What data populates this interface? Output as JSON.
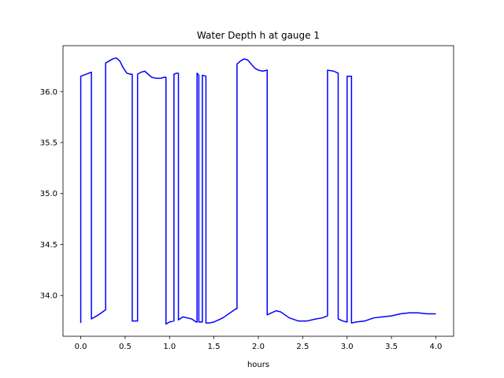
{
  "chart_data": {
    "type": "line",
    "title": "Water Depth h at gauge 1",
    "xlabel": "hours",
    "ylabel": "",
    "xlim": [
      -0.2,
      4.2
    ],
    "ylim": [
      33.6,
      36.45
    ],
    "grid": false,
    "xticks": [
      0.0,
      0.5,
      1.0,
      1.5,
      2.0,
      2.5,
      3.0,
      3.5,
      4.0
    ],
    "xtick_labels": [
      "0.0",
      "0.5",
      "1.0",
      "1.5",
      "2.0",
      "2.5",
      "3.0",
      "3.5",
      "4.0"
    ],
    "yticks": [
      34.0,
      34.5,
      35.0,
      35.5,
      36.0
    ],
    "ytick_labels": [
      "34.0",
      "34.5",
      "35.0",
      "35.5",
      "36.0"
    ],
    "colors": {
      "line": "#0000ff",
      "axes": "#000000",
      "background": "#ffffff"
    },
    "series": [
      {
        "x": [
          0.0,
          0.0,
          0.12,
          0.12,
          0.2,
          0.28,
          0.28,
          0.32,
          0.36,
          0.4,
          0.44,
          0.48,
          0.52,
          0.56,
          0.58,
          0.58,
          0.64,
          0.64,
          0.68,
          0.72,
          0.76,
          0.8,
          0.85,
          0.9,
          0.94,
          0.96,
          0.96,
          1.0,
          1.05,
          1.05,
          1.08,
          1.1,
          1.1,
          1.15,
          1.2,
          1.25,
          1.3,
          1.31,
          1.31,
          1.33,
          1.33,
          1.37,
          1.37,
          1.41,
          1.41,
          1.45,
          1.5,
          1.55,
          1.6,
          1.65,
          1.7,
          1.75,
          1.76,
          1.76,
          1.8,
          1.84,
          1.88,
          1.92,
          1.96,
          2.0,
          2.05,
          2.1,
          2.1,
          2.15,
          2.2,
          2.25,
          2.3,
          2.35,
          2.45,
          2.55,
          2.65,
          2.72,
          2.78,
          2.78,
          2.85,
          2.9,
          2.9,
          2.95,
          3.0,
          3.0,
          3.05,
          3.05,
          3.1,
          3.2,
          3.3,
          3.4,
          3.5,
          3.6,
          3.7,
          3.8,
          3.9,
          4.0
        ],
        "y": [
          33.73,
          36.15,
          36.19,
          33.77,
          33.81,
          33.86,
          36.28,
          36.3,
          36.32,
          36.33,
          36.3,
          36.23,
          36.18,
          36.17,
          36.17,
          33.75,
          33.75,
          36.17,
          36.19,
          36.2,
          36.17,
          36.14,
          36.13,
          36.13,
          36.14,
          36.14,
          33.72,
          33.74,
          33.75,
          36.17,
          36.18,
          36.18,
          33.76,
          33.79,
          33.78,
          33.77,
          33.74,
          33.74,
          36.18,
          36.16,
          33.74,
          33.74,
          36.16,
          36.15,
          33.73,
          33.73,
          33.74,
          33.76,
          33.78,
          33.81,
          33.84,
          33.87,
          33.87,
          36.27,
          36.3,
          36.32,
          36.31,
          36.27,
          36.23,
          36.21,
          36.2,
          36.21,
          33.81,
          33.83,
          33.85,
          33.84,
          33.81,
          33.78,
          33.75,
          33.75,
          33.77,
          33.78,
          33.8,
          36.21,
          36.2,
          36.18,
          33.77,
          33.75,
          33.74,
          36.15,
          36.15,
          33.73,
          33.74,
          33.75,
          33.78,
          33.79,
          33.8,
          33.82,
          33.83,
          33.83,
          33.82,
          33.82
        ]
      }
    ]
  }
}
